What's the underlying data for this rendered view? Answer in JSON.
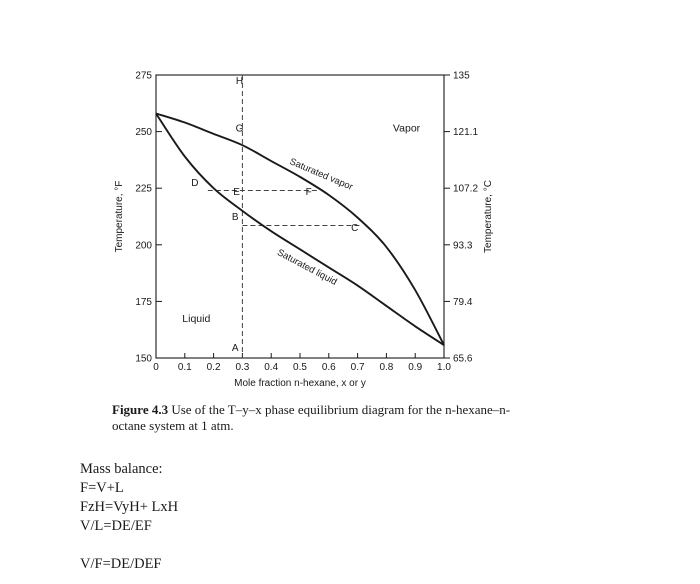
{
  "chart_data": {
    "type": "line",
    "title": "",
    "xlabel": "Mole fraction n-hexane, x or y",
    "ylabel_left": "Temperature, °F",
    "ylabel_right": "Temperature, °C",
    "xlim": [
      0,
      1.0
    ],
    "ylim": [
      150,
      275
    ],
    "x_ticks": [
      0,
      0.1,
      0.2,
      0.3,
      0.4,
      0.5,
      0.6,
      0.7,
      0.8,
      0.9,
      1.0
    ],
    "x_tick_labels": [
      "0",
      "0.1",
      "0.2",
      "0.3",
      "0.4",
      "0.5",
      "0.6",
      "0.7",
      "0.8",
      "0.9",
      "1.0"
    ],
    "y_left_ticks": [
      150,
      175,
      200,
      225,
      250,
      275
    ],
    "y_left_tick_labels": [
      "150",
      "175",
      "200",
      "225",
      "250",
      "275"
    ],
    "y_right_ticks": [
      150,
      175,
      200,
      225,
      250,
      275
    ],
    "y_right_tick_labels": [
      "65.6",
      "79.4",
      "93.3",
      "107.2",
      "121.1",
      "135"
    ],
    "series": [
      {
        "name": "Saturated vapor",
        "x": [
          0,
          0.1,
          0.2,
          0.3,
          0.4,
          0.5,
          0.6,
          0.7,
          0.8,
          0.9,
          1.0
        ],
        "y": [
          258,
          254,
          249,
          244,
          237,
          230,
          222,
          212,
          199,
          180,
          155.7
        ]
      },
      {
        "name": "Saturated liquid",
        "x": [
          0,
          0.1,
          0.2,
          0.3,
          0.4,
          0.5,
          0.6,
          0.7,
          0.8,
          0.9,
          1.0
        ],
        "y": [
          258,
          239,
          225,
          215,
          206,
          198,
          190,
          182,
          173,
          164,
          155.7
        ]
      }
    ],
    "annotations": [
      {
        "text": "H",
        "x": 0.29,
        "y": 271
      },
      {
        "text": "G",
        "x": 0.29,
        "y": 250
      },
      {
        "text": "D",
        "x": 0.135,
        "y": 226
      },
      {
        "text": "E",
        "x": 0.28,
        "y": 222
      },
      {
        "text": "F",
        "x": 0.53,
        "y": 222
      },
      {
        "text": "B",
        "x": 0.275,
        "y": 211
      },
      {
        "text": "C",
        "x": 0.69,
        "y": 206
      },
      {
        "text": "A",
        "x": 0.275,
        "y": 153
      }
    ],
    "region_labels": [
      {
        "text": "Vapor",
        "x": 0.87,
        "y": 250
      },
      {
        "text": "Liquid",
        "x": 0.14,
        "y": 166
      }
    ],
    "curve_labels": [
      {
        "text": "Saturated vapor",
        "x": 0.57,
        "y": 230
      },
      {
        "text": "Saturated liquid",
        "x": 0.52,
        "y": 189
      }
    ],
    "construction": {
      "vertical_x": 0.3,
      "tie_line_1": {
        "y": 224,
        "x_from": 0.18,
        "x_to": 0.56
      },
      "tie_line_2": {
        "y": 208.5,
        "x_from": 0.3,
        "x_to": 0.71
      }
    },
    "grid": false,
    "legend": "none"
  },
  "caption": {
    "figure_number": "Figure 4.3",
    "text": " Use of the T–y–x phase equilibrium diagram for the n-hexane–n-octane system at 1 atm."
  },
  "notes": {
    "heading": "Mass balance:",
    "lines": [
      "F=V+L",
      "FzH=VyH+ LxH",
      "V/L=DE/EF",
      "",
      "V/F=DE/DEF"
    ]
  }
}
